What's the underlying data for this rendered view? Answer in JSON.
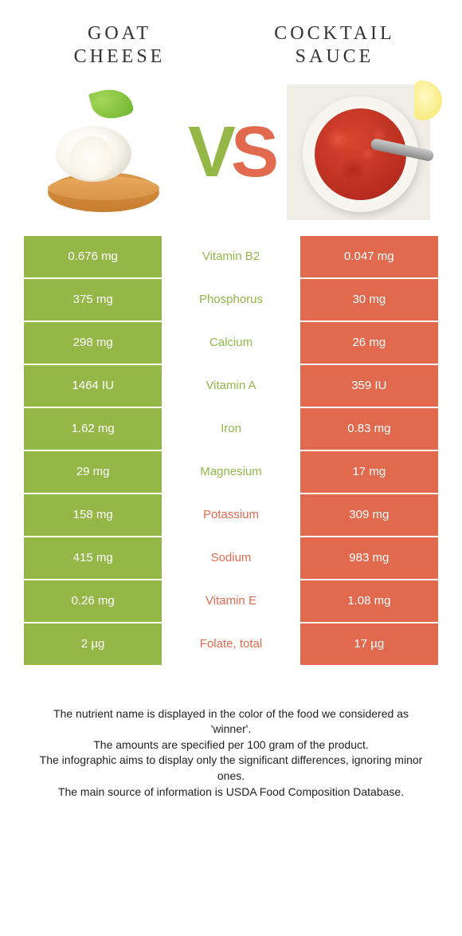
{
  "left_title": "GOAT CHEESE",
  "right_title": "COCKTAIL SAUCE",
  "vs_v": "V",
  "vs_s": "S",
  "colors": {
    "green": "#94b748",
    "orange": "#e1694e",
    "white": "#ffffff",
    "text": "#333333"
  },
  "rows": [
    {
      "left": "0.676 mg",
      "label": "Vitamin B2",
      "right": "0.047 mg",
      "winner": "left"
    },
    {
      "left": "375 mg",
      "label": "Phosphorus",
      "right": "30 mg",
      "winner": "left"
    },
    {
      "left": "298 mg",
      "label": "Calcium",
      "right": "26 mg",
      "winner": "left"
    },
    {
      "left": "1464 IU",
      "label": "Vitamin A",
      "right": "359 IU",
      "winner": "left"
    },
    {
      "left": "1.62 mg",
      "label": "Iron",
      "right": "0.83 mg",
      "winner": "left"
    },
    {
      "left": "29 mg",
      "label": "Magnesium",
      "right": "17 mg",
      "winner": "left"
    },
    {
      "left": "158 mg",
      "label": "Potassium",
      "right": "309 mg",
      "winner": "right"
    },
    {
      "left": "415 mg",
      "label": "Sodium",
      "right": "983 mg",
      "winner": "right"
    },
    {
      "left": "0.26 mg",
      "label": "Vitamin E",
      "right": "1.08 mg",
      "winner": "right"
    },
    {
      "left": "2 µg",
      "label": "Folate, total",
      "right": "17 µg",
      "winner": "right"
    }
  ],
  "footer_lines": [
    "The nutrient name is displayed in the color of the food we considered as 'winner'.",
    "The amounts are specified per 100 gram of the product.",
    "The infographic aims to display only the significant differences, ignoring minor ones.",
    "The main source of information is USDA Food Composition Database."
  ]
}
